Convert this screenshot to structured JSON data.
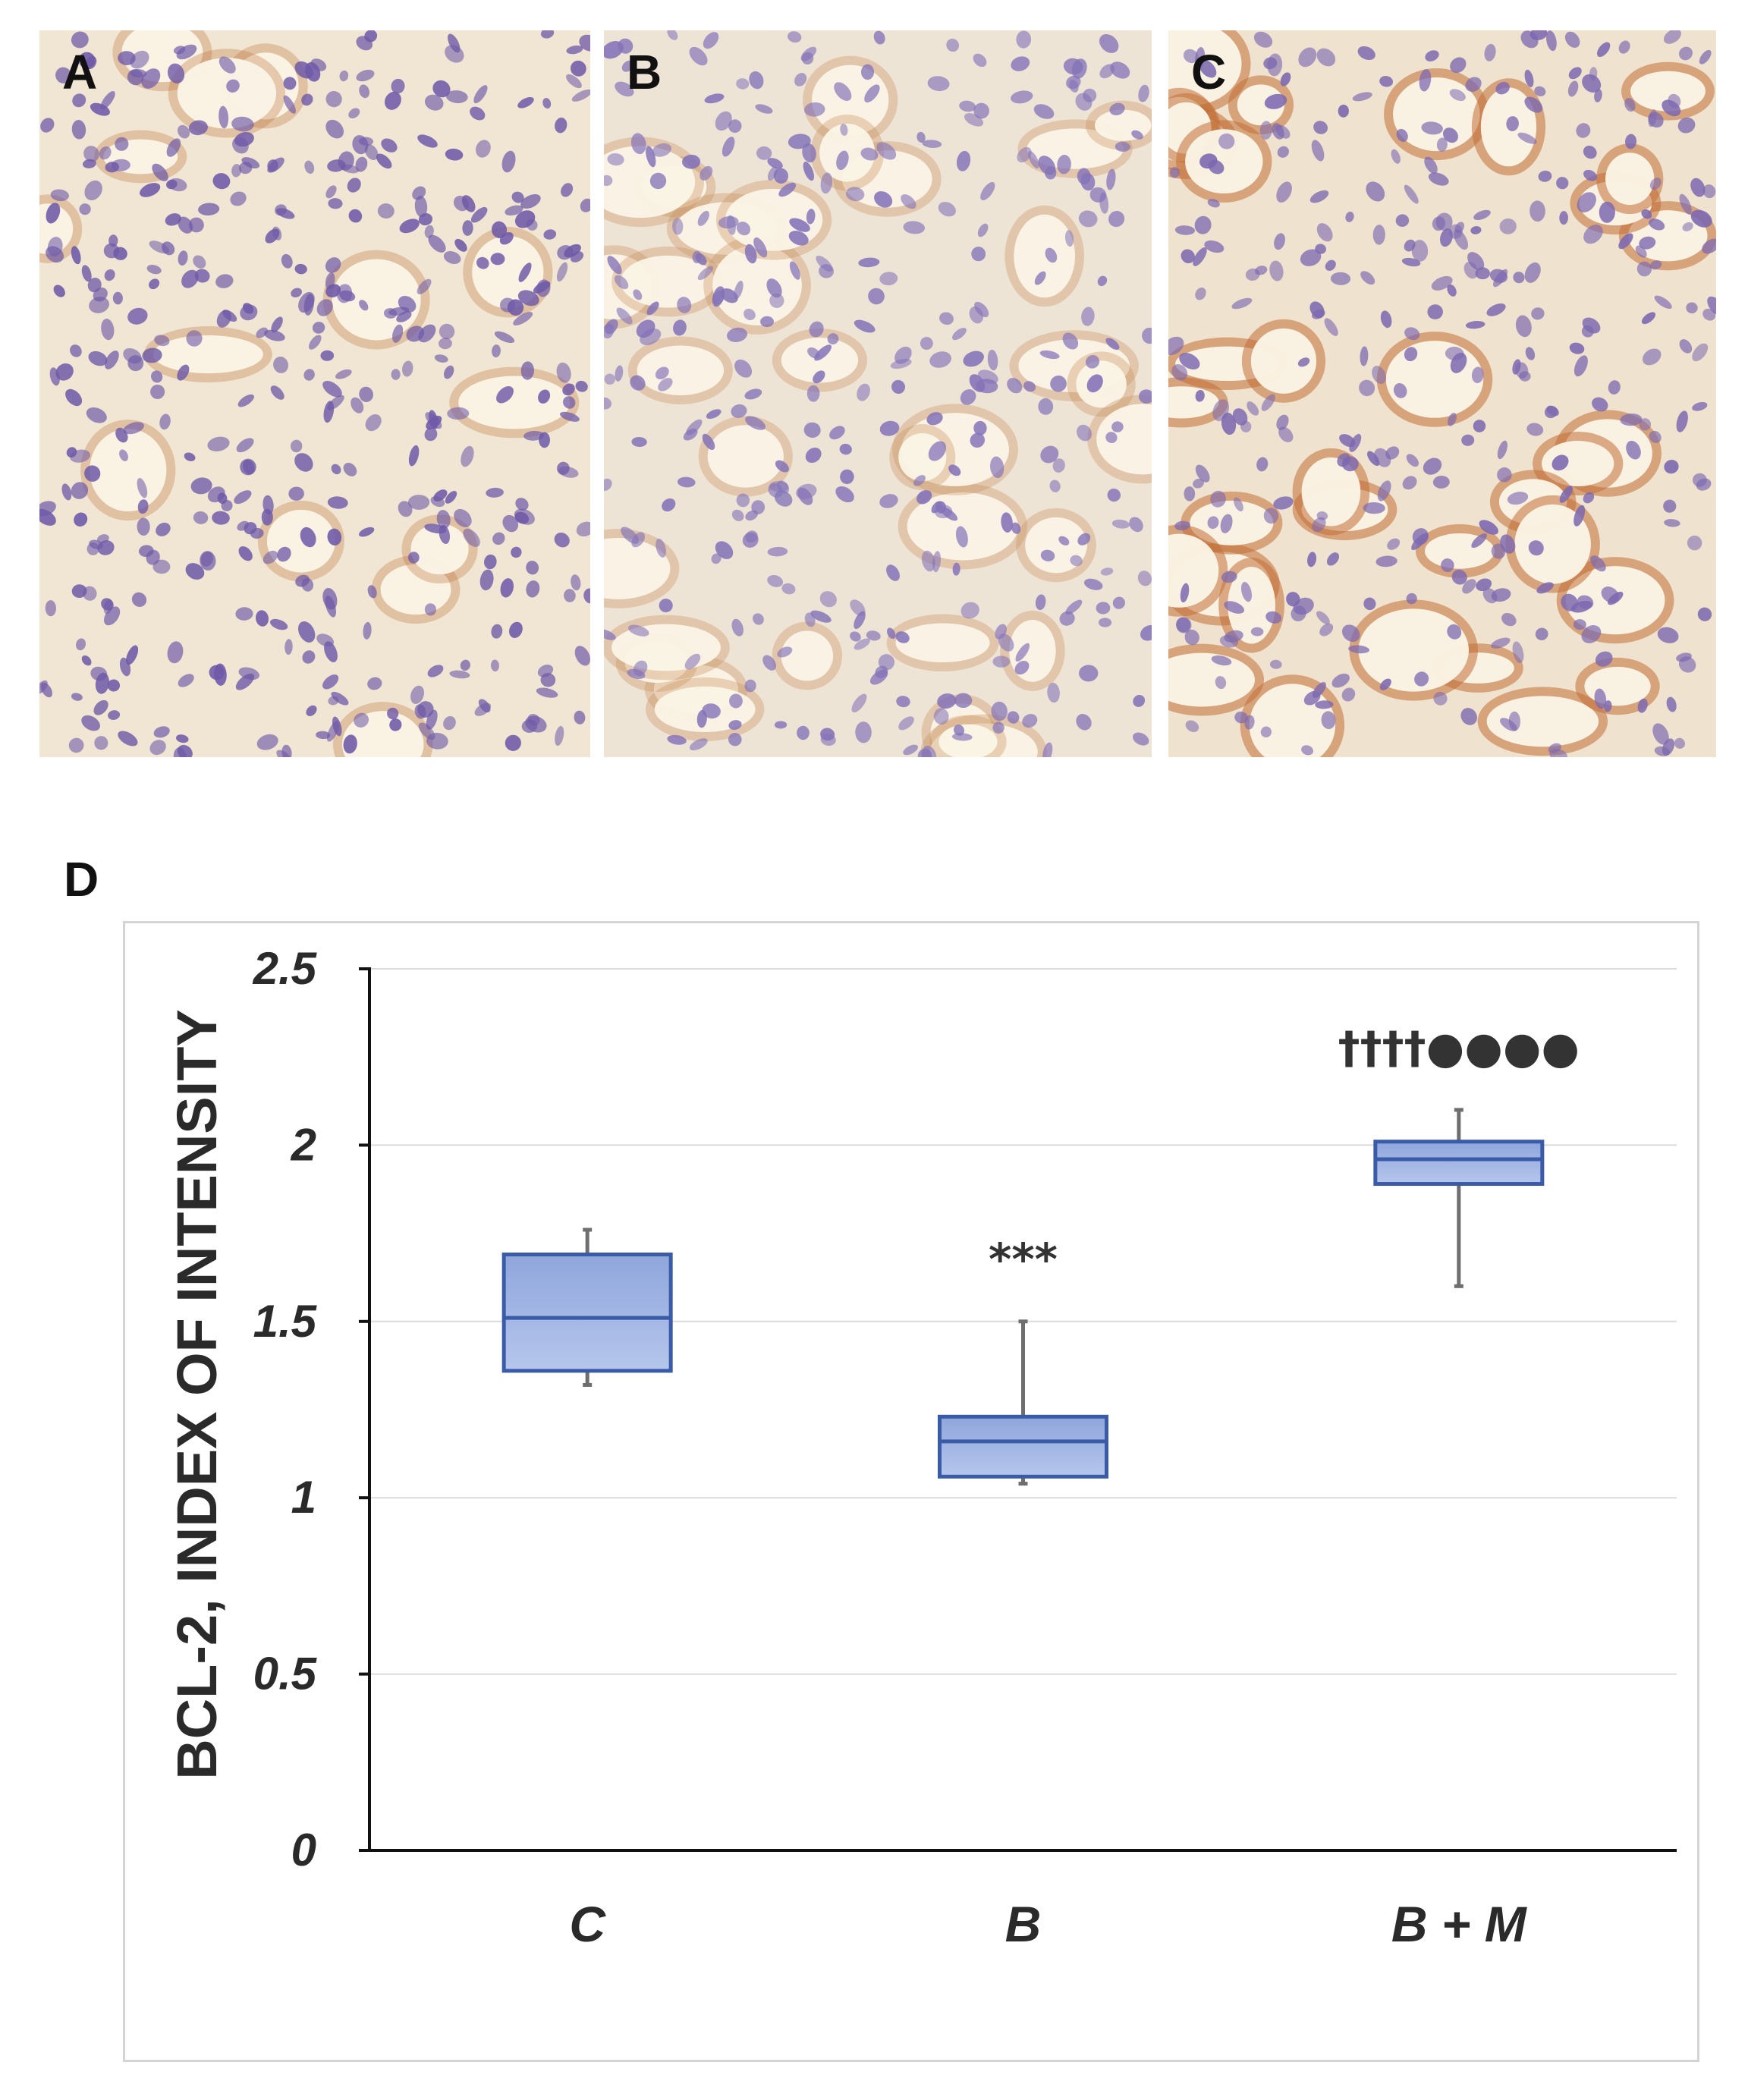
{
  "panels": [
    {
      "letter": "A",
      "tint": "#f1e6d3",
      "stain": "#c07a45",
      "nuclei": "#6f5aa8"
    },
    {
      "letter": "B",
      "tint": "#eee4d6",
      "stain": "#c98e5c",
      "nuclei": "#8473b8"
    },
    {
      "letter": "C",
      "tint": "#efe2cf",
      "stain": "#c27036",
      "nuclei": "#7c68b0"
    }
  ],
  "chart_panel_letter": "D",
  "chart_data": {
    "type": "box",
    "title": "",
    "xlabel": "",
    "ylabel": "BCL-2, INDEX OF INTENSITY",
    "ylim": [
      0,
      2.5
    ],
    "yticks": [
      "0",
      "0.5",
      "1",
      "1.5",
      "2",
      "2.5"
    ],
    "grid": true,
    "categories": [
      "C",
      "B",
      "B + M"
    ],
    "boxes": [
      {
        "category": "C",
        "min": 1.32,
        "q1": 1.36,
        "median": 1.51,
        "q3": 1.69,
        "max": 1.76,
        "annotation": ""
      },
      {
        "category": "B",
        "min": 1.04,
        "q1": 1.06,
        "median": 1.16,
        "q3": 1.23,
        "max": 1.5,
        "annotation": "***"
      },
      {
        "category": "B + M",
        "min": 1.6,
        "q1": 1.89,
        "median": 1.96,
        "q3": 2.01,
        "max": 2.1,
        "annotation": "††††●●●●"
      }
    ],
    "colors": {
      "box_fill_top": "#8fa6dc",
      "box_fill_bottom": "#b6c6ec",
      "box_edge": "#3a5ba8",
      "whisker": "#6e6e6e",
      "grid": "#dcdcdc",
      "axis": "#111111"
    }
  }
}
